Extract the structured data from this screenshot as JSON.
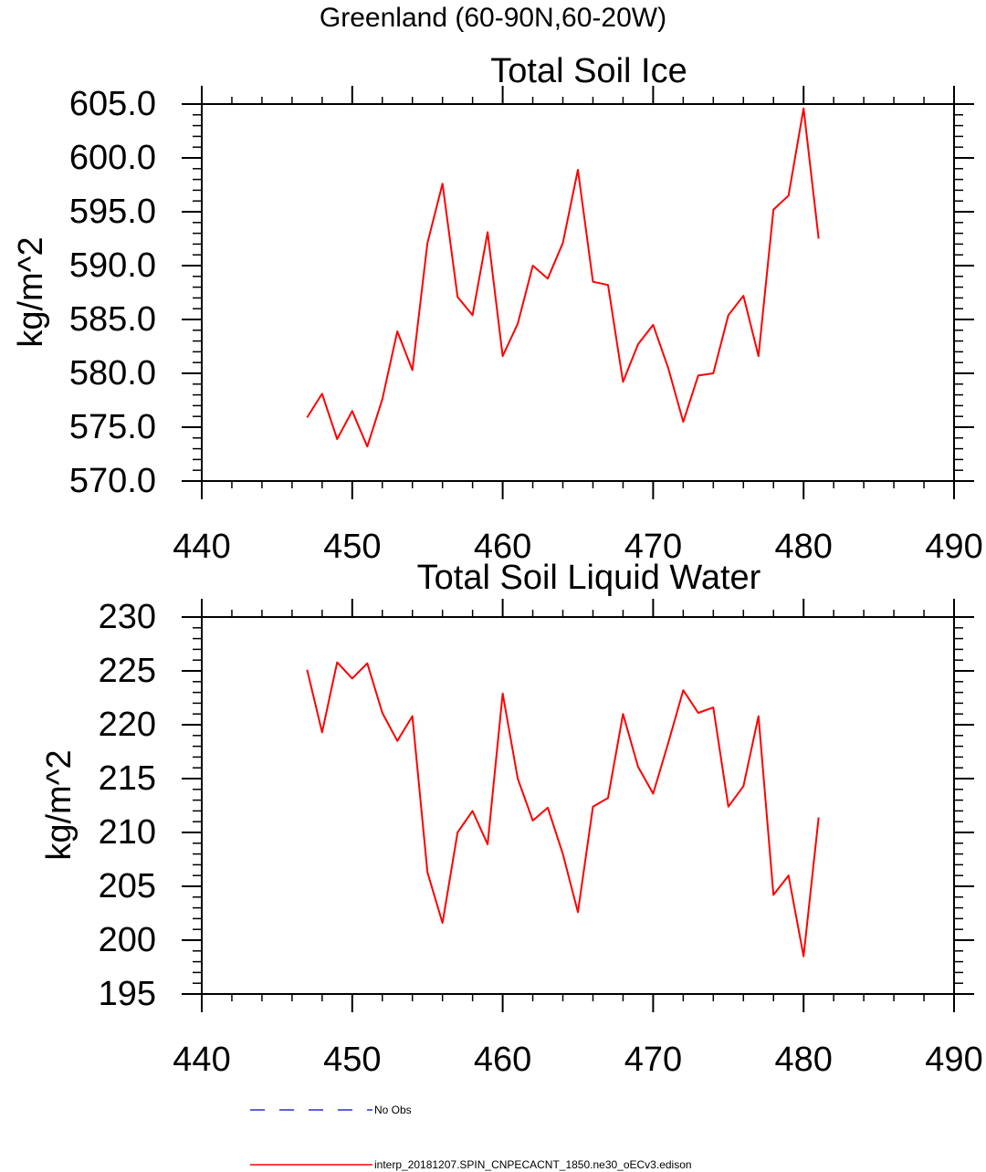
{
  "figure": {
    "suptitle": "Greenland (60-90N,60-20W)"
  },
  "colors": {
    "model_line": "#ff0000",
    "obs_line": "#0000cc",
    "axes": "#000000"
  },
  "chart_data": [
    {
      "type": "line",
      "title": "Total Soil Ice",
      "xlabel": "",
      "ylabel": "kg/m^2",
      "xlim": [
        440,
        490
      ],
      "ylim": [
        570,
        605
      ],
      "xticks": [
        440,
        450,
        460,
        470,
        480,
        490
      ],
      "xtick_labels": [
        "440",
        "450",
        "460",
        "470",
        "480",
        "490"
      ],
      "yticks": [
        570,
        575,
        580,
        585,
        590,
        595,
        600,
        605
      ],
      "ytick_labels": [
        "570.0",
        "575.0",
        "580.0",
        "585.0",
        "590.0",
        "595.0",
        "600.0",
        "605.0"
      ],
      "x": [
        447,
        448,
        449,
        450,
        451,
        452,
        453,
        454,
        455,
        456,
        457,
        458,
        459,
        460,
        461,
        462,
        463,
        464,
        465,
        466,
        467,
        468,
        469,
        470,
        471,
        472,
        473,
        474,
        475,
        476,
        477,
        478,
        479,
        480,
        481
      ],
      "series": [
        {
          "name": "interp_20181207.SPIN_CNPECACNT_1850.ne30_oECv3.edison",
          "values": [
            575.9,
            578.1,
            573.9,
            576.5,
            573.2,
            577.6,
            583.9,
            580.3,
            592.1,
            597.6,
            587.1,
            585.4,
            593.1,
            581.6,
            584.6,
            590.0,
            588.8,
            592.1,
            598.9,
            588.5,
            588.2,
            579.2,
            582.7,
            584.5,
            580.5,
            575.5,
            579.8,
            580.0,
            585.4,
            587.2,
            581.6,
            595.2,
            596.5,
            604.6,
            592.5
          ]
        }
      ]
    },
    {
      "type": "line",
      "title": "Total Soil Liquid Water",
      "xlabel": "",
      "ylabel": "kg/m^2",
      "xlim": [
        440,
        490
      ],
      "ylim": [
        195,
        230
      ],
      "xticks": [
        440,
        450,
        460,
        470,
        480,
        490
      ],
      "xtick_labels": [
        "440",
        "450",
        "460",
        "470",
        "480",
        "490"
      ],
      "yticks": [
        195,
        200,
        205,
        210,
        215,
        220,
        225,
        230
      ],
      "ytick_labels": [
        "195",
        "200",
        "205",
        "210",
        "215",
        "220",
        "225",
        "230"
      ],
      "x": [
        447,
        448,
        449,
        450,
        451,
        452,
        453,
        454,
        455,
        456,
        457,
        458,
        459,
        460,
        461,
        462,
        463,
        464,
        465,
        466,
        467,
        468,
        469,
        470,
        471,
        472,
        473,
        474,
        475,
        476,
        477,
        478,
        479,
        480,
        481
      ],
      "series": [
        {
          "name": "interp_20181207.SPIN_CNPECACNT_1850.ne30_oECv3.edison",
          "values": [
            225.1,
            219.3,
            225.8,
            224.3,
            225.7,
            221.1,
            218.5,
            220.8,
            206.3,
            201.6,
            210.0,
            212.0,
            208.9,
            222.9,
            215.0,
            211.1,
            212.3,
            208.0,
            202.6,
            212.4,
            213.2,
            221.0,
            216.1,
            213.6,
            218.3,
            223.2,
            221.1,
            221.6,
            212.4,
            214.3,
            220.8,
            204.2,
            206.0,
            198.5,
            211.4
          ]
        }
      ]
    }
  ],
  "legend": {
    "placement": "bottom-left",
    "entries": [
      {
        "label": "No Obs",
        "style": "dashed"
      },
      {
        "label": "interp_20181207.SPIN_CNPECACNT_1850.ne30_oECv3.edison",
        "style": "solid"
      }
    ]
  }
}
